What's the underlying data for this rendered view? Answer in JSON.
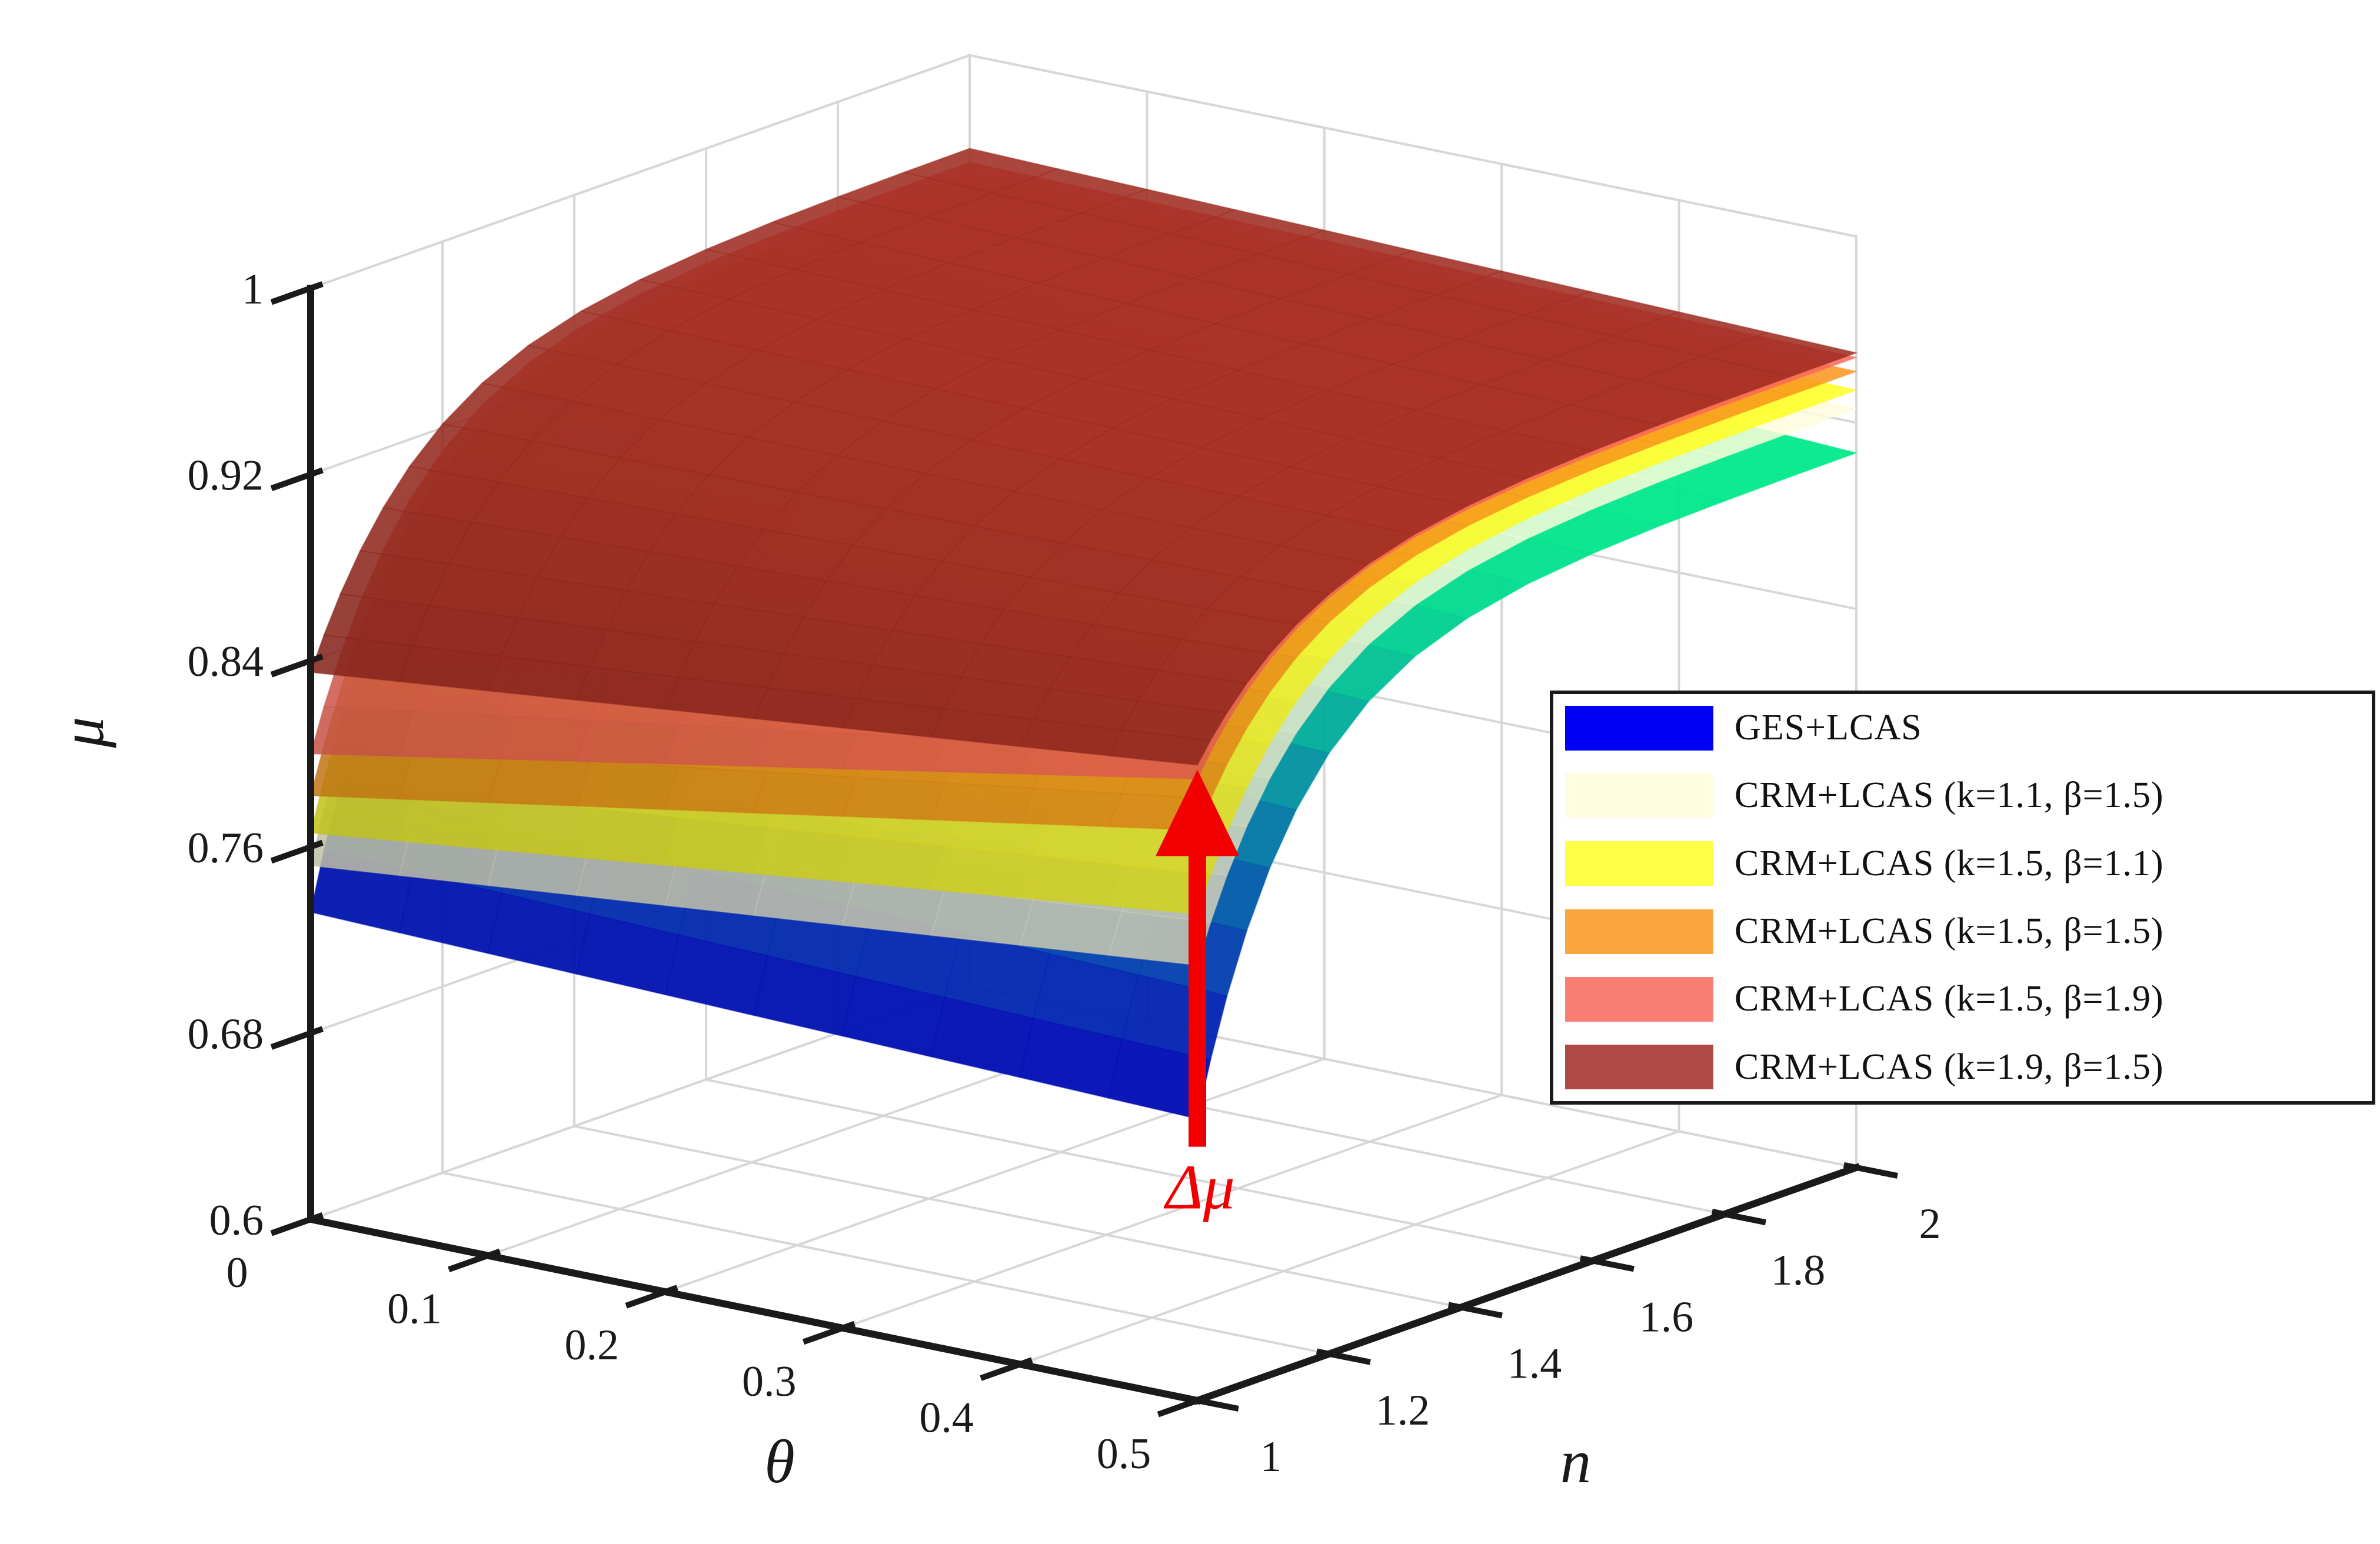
{
  "figure": {
    "background": "#FFFFFF"
  },
  "chart_data": {
    "type": "surface3d",
    "title": "",
    "grid": true,
    "axes": {
      "x": {
        "label": "θ",
        "range": [
          0,
          0.5
        ],
        "ticks": [
          0,
          0.1,
          0.2,
          0.3,
          0.4,
          0.5
        ],
        "tick_labels": [
          "0",
          "0.1",
          "0.2",
          "0.3",
          "0.4",
          "0.5"
        ]
      },
      "y": {
        "label": "n",
        "range": [
          1,
          2
        ],
        "ticks": [
          1,
          1.2,
          1.4,
          1.6,
          1.8,
          2
        ],
        "tick_labels": [
          "1",
          "1.2",
          "1.4",
          "1.6",
          "1.8",
          "2"
        ]
      },
      "z": {
        "label": "μ",
        "range": [
          0.6,
          1
        ],
        "ticks": [
          0.6,
          0.68,
          0.76,
          0.84,
          0.92,
          1
        ],
        "tick_labels": [
          "0.6",
          "0.68",
          "0.76",
          "0.84",
          "0.92",
          "1"
        ]
      }
    },
    "series": [
      {
        "name": "GES+LCAS",
        "legend_color": "#0000F2",
        "surface_color": "#0000FF",
        "colormap": "winter",
        "alpha": 0.95,
        "tau": 0.15,
        "corners": {
          "t0n1": 0.732,
          "t5n1": 0.721,
          "t0n2": 0.925,
          "t5n2": 0.907
        }
      },
      {
        "name": "CRM+LCAS (k=1.1, β=1.5)",
        "legend_color": "#FFFCE0",
        "surface_color": "#FFFDDC",
        "alpha": 0.85,
        "tau": 0.16,
        "corners": {
          "t0n1": 0.752,
          "t5n1": 0.787,
          "t0n2": 0.937,
          "t5n2": 0.926
        }
      },
      {
        "name": "CRM+LCAS (k=1.5, β=1.1)",
        "legend_color": "#FFFF47",
        "surface_color": "#FFFF1F",
        "alpha": 0.85,
        "tau": 0.16,
        "corners": {
          "t0n1": 0.766,
          "t5n1": 0.809,
          "t0n2": 0.943,
          "t5n2": 0.934
        }
      },
      {
        "name": "CRM+LCAS (k=1.5, β=1.5)",
        "legend_color": "#F9A63E",
        "surface_color": "#F9951A",
        "alpha": 0.85,
        "tau": 0.16,
        "corners": {
          "t0n1": 0.782,
          "t5n1": 0.845,
          "t0n2": 0.949,
          "t5n2": 0.942
        }
      },
      {
        "name": "CRM+LCAS (k=1.5, β=1.9)",
        "legend_color": "#F97F73",
        "surface_color": "#F96759",
        "alpha": 0.85,
        "tau": 0.16,
        "corners": {
          "t0n1": 0.8,
          "t5n1": 0.867,
          "t0n2": 0.954,
          "t5n2": 0.948
        }
      },
      {
        "name": "CRM+LCAS (k=1.9, β=1.5)",
        "legend_color": "#AE4B47",
        "surface_color": "#9E2B20",
        "alpha": 0.87,
        "tau": 0.17,
        "corners": {
          "t0n1": 0.835,
          "t5n1": 0.873,
          "t0n2": 0.96,
          "t5n2": 0.95
        }
      }
    ],
    "annotation": {
      "label": "Δμ",
      "color": "#F20000",
      "theta": 0.5,
      "n": 1,
      "mu_from": 0.709,
      "mu_to": 0.871
    },
    "legend": {
      "position": "middle-right",
      "border_color": "#1A1A1A",
      "background": "#FFFFFF"
    }
  }
}
